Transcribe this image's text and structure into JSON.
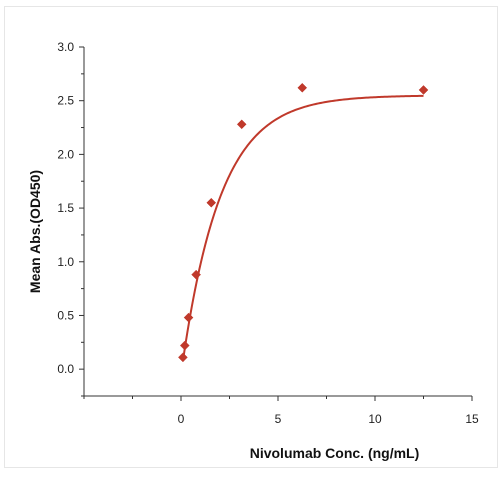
{
  "chart_data": {
    "type": "scatter",
    "title": "",
    "xlabel": "Nivolumab Conc. (ng/mL)",
    "ylabel": "Mean Abs.(OD450)",
    "xlim": [
      -5,
      15
    ],
    "ylim": [
      -0.25,
      3.0
    ],
    "x_ticks": [
      0,
      5,
      10,
      15
    ],
    "y_ticks": [
      0.0,
      0.5,
      1.0,
      1.5,
      2.0,
      2.5,
      3.0
    ],
    "x_tick_labels": [
      "0",
      "5",
      "10",
      "15"
    ],
    "y_tick_labels": [
      "0.0",
      "0.5",
      "1.0",
      "1.5",
      "2.0",
      "2.5",
      "3.0"
    ],
    "series": [
      {
        "marker": "diamond",
        "color": "#c0392b",
        "points": [
          {
            "x": 0.098,
            "y": 0.11
          },
          {
            "x": 0.195,
            "y": 0.22
          },
          {
            "x": 0.39,
            "y": 0.48
          },
          {
            "x": 0.78,
            "y": 0.88
          },
          {
            "x": 1.56,
            "y": 1.55
          },
          {
            "x": 3.13,
            "y": 2.28
          },
          {
            "x": 6.25,
            "y": 2.62
          },
          {
            "x": 12.5,
            "y": 2.6
          }
        ]
      }
    ],
    "fit_curve": {
      "color": "#c0392b",
      "model": "exponential saturation",
      "a": 2.6,
      "k": 0.5,
      "c": -0.05,
      "x_range": [
        0.098,
        12.5
      ]
    },
    "grid": false
  }
}
